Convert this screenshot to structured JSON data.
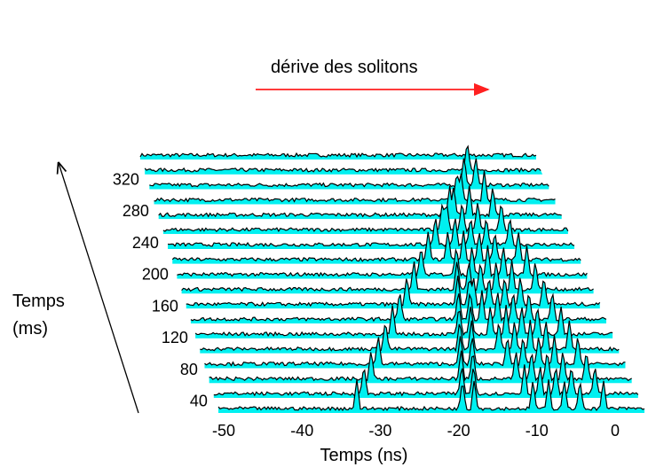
{
  "chart_data": {
    "type": "waterfall",
    "annotation": "dérive des solitons",
    "xlabel": "Temps (ns)",
    "ylabel_line1": "Temps",
    "ylabel_line2": "(ms)",
    "x_ticks": [
      -50,
      -40,
      -30,
      -20,
      -10,
      0
    ],
    "y_ticks": [
      40,
      80,
      120,
      160,
      200,
      240,
      280,
      320
    ],
    "xlim": [
      -55,
      2
    ],
    "ylim": [
      25,
      345
    ],
    "trace_spacing_ms": 18,
    "trace_count": 18,
    "fill_color": "#00f0f0",
    "line_color": "#000000",
    "arrow_color": "#ff2020",
    "soliton_positions_ns": [
      [
        -1.5,
        -4.5,
        -6.5,
        -8.5,
        -10.5,
        -18,
        -19.5,
        -33
      ],
      [
        -2,
        -5,
        -7,
        -9,
        -11,
        -17.5,
        -19,
        -31.5
      ],
      [
        -2.5,
        -5.5,
        -7.5,
        -9.5,
        -11.5,
        -17,
        -18.5,
        -30
      ],
      [
        -3,
        -6,
        -8,
        -10,
        -12,
        -16.5,
        -18,
        -28.5
      ],
      [
        -3.5,
        -6.5,
        -8.5,
        -10.5,
        -12.5,
        -16,
        -17.5,
        -27
      ],
      [
        -4,
        -7,
        -9,
        -11,
        -13,
        -15.5,
        -17,
        -25.5
      ],
      [
        -4.5,
        -7.5,
        -9.5,
        -11.5,
        -13.5,
        -15,
        -16.5,
        -24
      ],
      [
        -5,
        -8,
        -10,
        -12,
        -14,
        -14.5,
        -16,
        -22.5
      ],
      [
        -5.5,
        -8.5,
        -10.5,
        -12.5,
        -14,
        -15.5,
        -21
      ],
      [
        -6,
        -9,
        -11,
        -13,
        -15,
        -19.5
      ],
      [
        -6.5,
        -9.5,
        -11.5,
        -13.5,
        -15.5,
        -18
      ],
      [
        -7,
        -10,
        -12,
        -14,
        -16.5
      ],
      [
        -7.5,
        -10.5,
        -12.5,
        -14.5,
        -15
      ],
      [
        -8,
        -11,
        -13,
        -13.5
      ],
      [
        -8.5,
        -11.5,
        -12
      ],
      [
        -9,
        -10.5
      ],
      [
        -9.5
      ],
      []
    ]
  }
}
